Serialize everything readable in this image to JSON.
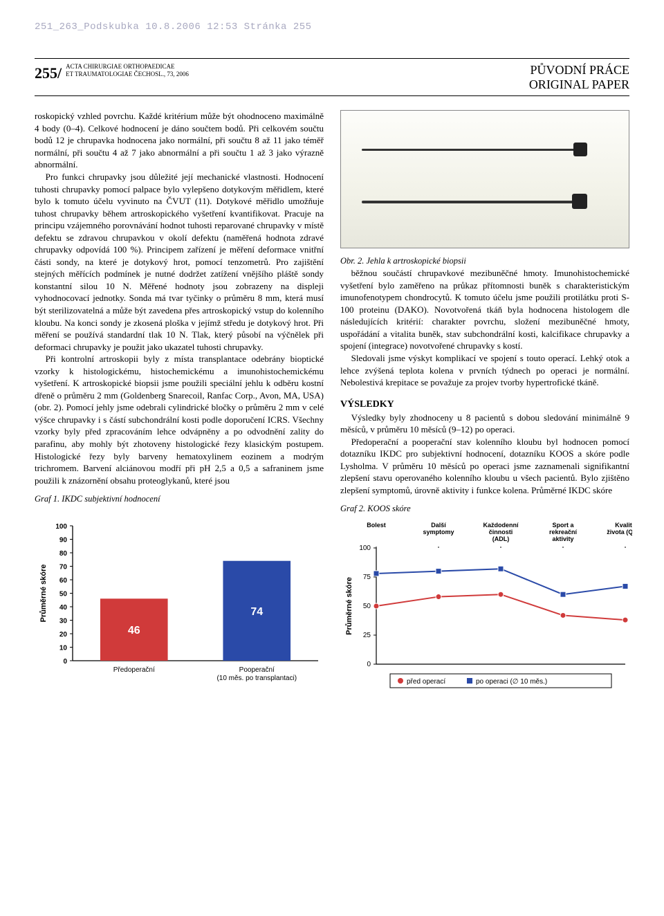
{
  "header_print_line": "251_263_Podskubka  10.8.2006  12:53  Stránka 255",
  "masthead": {
    "page_number": "255/",
    "journal_line1": "ACTA CHIRURGIAE ORTHOPAEDICAE",
    "journal_line2": "ET TRAUMATOLOGIAE ČECHOSL., 73, 2006",
    "right_line1": "PŮVODNÍ PRÁCE",
    "right_line2": "ORIGINAL PAPER"
  },
  "left_column": {
    "p1": "roskopický vzhled povrchu. Každé kritérium může být ohodnoceno maximálně 4 body (0–4). Celkové hodnocení je dáno součtem bodů. Při celkovém součtu bodů 12 je chrupavka hodnocena jako normální, při součtu 8 až 11 jako téměř normální, při součtu 4 až 7 jako abnormální a při součtu 1 až 3 jako výrazně abnormální.",
    "p2": "Pro funkci chrupavky jsou důležité její mechanické vlastnosti. Hodnocení tuhosti chrupavky pomocí palpace bylo vylepšeno dotykovým měřidlem, které bylo k tomuto účelu vyvinuto na ČVUT (11). Dotykové měřidlo umožňuje tuhost chrupavky během artroskopického vyšetření kvantifikovat. Pracuje na principu vzájemného porovnávání hodnot tuhosti reparované chrupavky v místě defektu se zdravou chrupavkou v okolí defektu (naměřená hodnota zdravé chrupavky odpovídá 100 %). Principem zařízení je měření deformace vnitřní části sondy, na které je dotykový hrot, pomocí tenzometrů. Pro zajištění stejných měřících podmínek je nutné dodržet zatížení vnějšího pláště sondy konstantní silou 10 N. Měřené hodnoty jsou zobrazeny na displeji vyhodnocovací jednotky. Sonda má tvar tyčinky o průměru 8 mm, která musí být sterilizovatelná a může být zavedena přes artroskopický vstup do kolenního kloubu. Na konci sondy je zkosená ploška v jejímž středu je dotykový hrot. Při měření se používá standardní tlak 10 N. Tlak, který působí na výčnělek při deformaci chrupavky je použit jako ukazatel tuhosti chrupavky.",
    "p3": "Při kontrolní artroskopii byly z místa transplantace odebrány bioptické vzorky k histologickému, histochemickému a imunohistochemickému vyšetření. K artroskopické biopsii jsme použili speciální jehlu k odběru kostní dřeně o průměru 2 mm (Goldenberg Snarecoil, Ranfac Corp., Avon, MA, USA) (obr. 2). Pomocí jehly jsme odebrali cylindrické bločky o průměru 2 mm v celé výšce chrupavky i s částí subchondrální kosti podle doporučení ICRS. Všechny vzorky byly před zpracováním lehce odvápněny a po odvodnění zality do parafinu, aby mohly být zhotoveny histologické řezy klasickým postupem. Histologické řezy byly barveny hematoxylinem eozinem a modrým trichromem. Barvení alciánovou modří při pH 2,5 a 0,5 a safraninem jsme použili k znázornění obsahu proteoglykanů, které jsou",
    "graf1_caption": "Graf 1. IKDC subjektivní hodnocení"
  },
  "right_column": {
    "fig2_caption": "Obr. 2. Jehla k artroskopické biopsii",
    "p1": "běžnou součástí chrupavkové mezibuněčné hmoty. Imunohistochemické vyšetření bylo zaměřeno na průkaz přítomnosti buněk s charakteristickým imunofenotypem chondrocytů. K tomuto účelu jsme použili protilátku proti S-100 proteinu (DAKO). Novotvořená tkáň byla hodnocena histologem dle následujících kritérií: charakter povrchu, složení mezibuněčné hmoty, uspořádání a vitalita buněk, stav subchondrální kosti, kalcifikace chrupavky a spojení (integrace) novotvořené chrupavky s kostí.",
    "p2": "Sledovali jsme výskyt komplikací ve spojení s touto operací. Lehký otok a lehce zvýšená teplota kolena v prvních týdnech po operaci je normální. Nebolestivá krepitace se považuje za projev tvorby hypertrofické tkáně.",
    "section_head": "VÝSLEDKY",
    "p3": "Výsledky byly zhodnoceny u 8 pacientů s dobou sledování minimálně 9 měsíců, v průměru 10 měsíců (9–12) po operaci.",
    "p4": "Předoperační a pooperační stav kolenního kloubu byl hodnocen pomocí dotazníku IKDC pro subjektivní hodnocení, dotazníku KOOS a skóre podle Lysholma. V průměru 10 měsíců po operaci jsme zaznamenali signifikantní zlepšení stavu operovaného kolenního kloubu u všech pacientů. Bylo zjištěno zlepšení symptomů, úrovně aktivity i funkce kolena. Průměrné IKDC skóre",
    "graf2_caption": "Graf 2. KOOS skóre"
  },
  "chart1": {
    "type": "bar",
    "y_axis_title": "Průměrné skóre",
    "y_ticks": [
      0,
      10,
      20,
      30,
      40,
      50,
      60,
      70,
      80,
      90,
      100
    ],
    "ylim": [
      0,
      100
    ],
    "categories": [
      "Předoperační",
      "Pooperační"
    ],
    "category_sub": [
      "",
      "(10 měs. po transplantaci)"
    ],
    "values": [
      46,
      74
    ],
    "bar_colors": [
      "#d03a3a",
      "#2a4aa8"
    ],
    "bar_width": 0.55,
    "background": "#ffffff",
    "axis_color": "#000000",
    "label_fontsize": 10
  },
  "chart2": {
    "type": "line",
    "y_axis_title": "Průměrné skóre",
    "y_ticks": [
      0,
      25,
      50,
      75,
      100
    ],
    "ylim": [
      0,
      100
    ],
    "categories": [
      "Bolest",
      "Další symptomy",
      "Každodenní činnosti (ADL)",
      "Sport a rekreační aktivity",
      "Kvalita života (QOL)"
    ],
    "series": [
      {
        "name": "před operací",
        "color": "#d03a3a",
        "marker": "circle",
        "values": [
          50,
          58,
          60,
          42,
          38
        ]
      },
      {
        "name": "po operaci (∅ 10 měs.)",
        "color": "#2a4aa8",
        "marker": "square",
        "values": [
          78,
          80,
          82,
          60,
          67
        ]
      }
    ],
    "background": "#ffffff",
    "axis_color": "#000000",
    "legend_border": "#000000"
  }
}
